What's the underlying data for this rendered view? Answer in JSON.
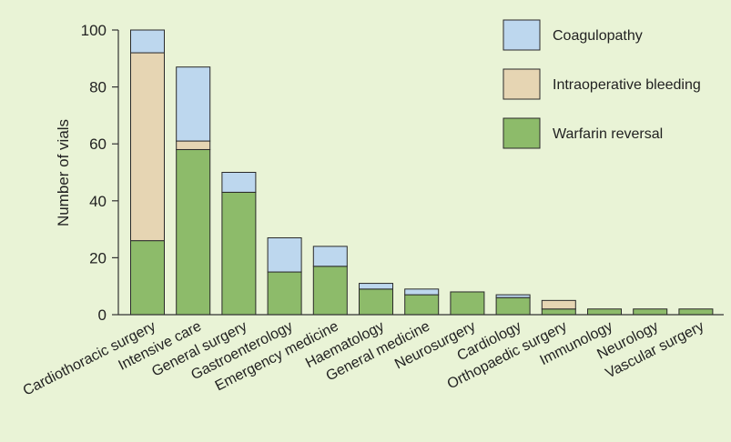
{
  "chart_data": {
    "type": "bar",
    "stacked": true,
    "title": "",
    "xlabel": "",
    "ylabel": "Number of vials",
    "ylim": [
      0,
      100
    ],
    "yticks": [
      0,
      20,
      40,
      60,
      80,
      100
    ],
    "grid": false,
    "legend_position": "top-right",
    "categories": [
      "Cardiothoracic surgery",
      "Intensive care",
      "General surgery",
      "Gastroenterology",
      "Emergency medicine",
      "Haematology",
      "General medicine",
      "Neurosurgery",
      "Cardiology",
      "Orthopaedic surgery",
      "Immunology",
      "Neurology",
      "Vascular surgery"
    ],
    "series": [
      {
        "name": "Warfarin reversal",
        "color": "#8dbb6a",
        "values": [
          26,
          58,
          43,
          15,
          17,
          9,
          7,
          8,
          6,
          2,
          2,
          2,
          2
        ]
      },
      {
        "name": "Intraoperative bleeding",
        "color": "#e6d5b3",
        "values": [
          66,
          3,
          0,
          0,
          0,
          0,
          0,
          0,
          0,
          3,
          0,
          0,
          0
        ]
      },
      {
        "name": "Coagulopathy",
        "color": "#bdd7ee",
        "values": [
          8,
          26,
          7,
          12,
          7,
          2,
          2,
          0,
          1,
          0,
          0,
          0,
          0
        ]
      }
    ],
    "legend_order": [
      "Coagulopathy",
      "Intraoperative bleeding",
      "Warfarin reversal"
    ]
  }
}
